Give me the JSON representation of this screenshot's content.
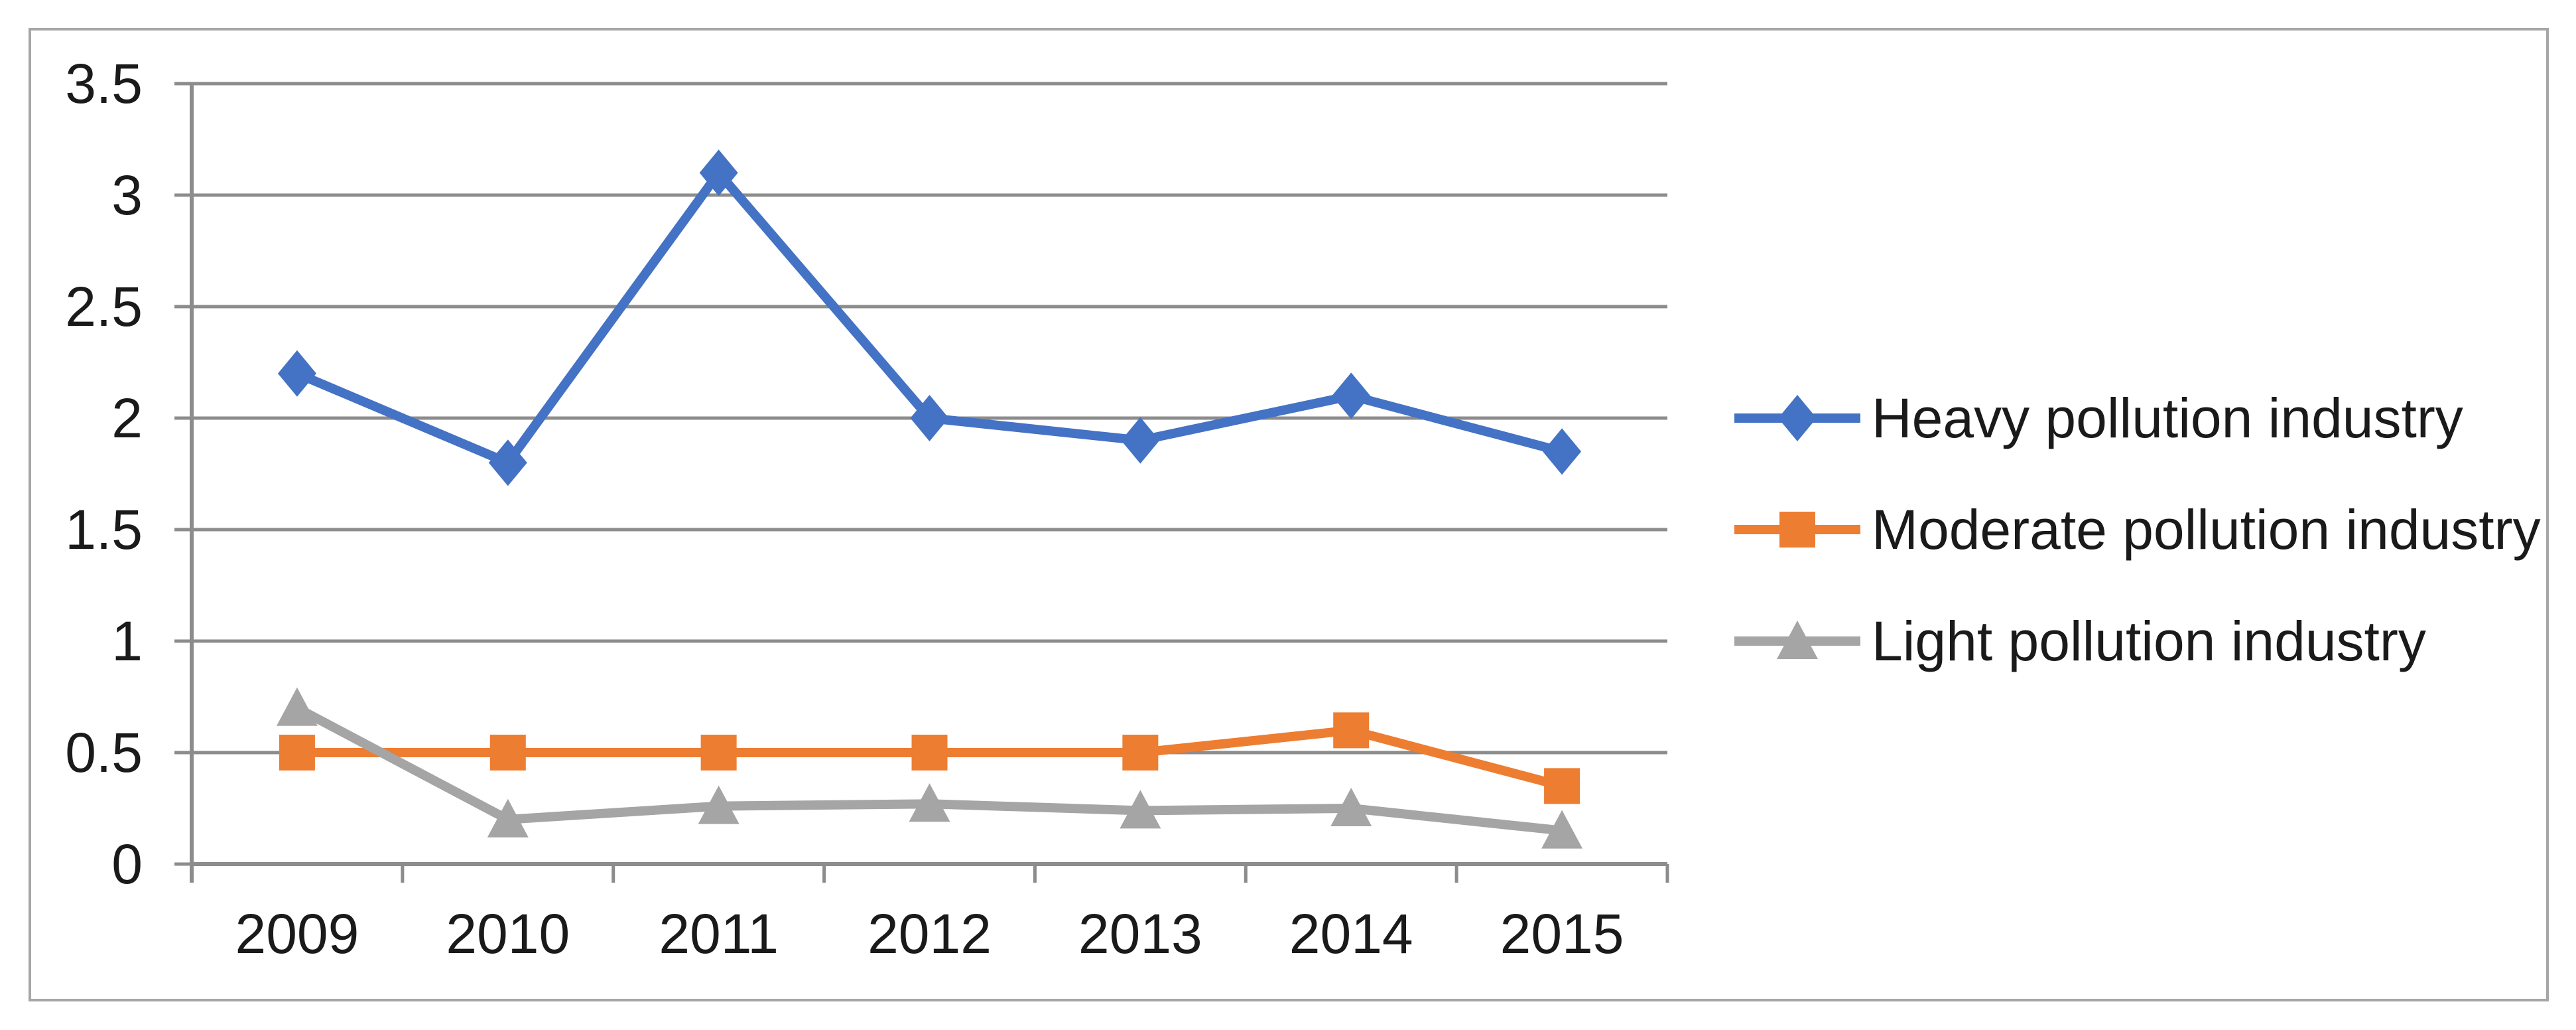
{
  "chart_data": {
    "type": "line",
    "categories": [
      "2009",
      "2010",
      "2011",
      "2012",
      "2013",
      "2014",
      "2015"
    ],
    "series": [
      {
        "name": "Heavy pollution industry",
        "color": "#4472C4",
        "marker": "diamond",
        "values": [
          2.2,
          1.8,
          3.1,
          2.0,
          1.9,
          2.1,
          1.85
        ]
      },
      {
        "name": "Moderate pollution industry",
        "color": "#ED7D31",
        "marker": "square",
        "values": [
          0.5,
          0.5,
          0.5,
          0.5,
          0.5,
          0.6,
          0.35
        ]
      },
      {
        "name": "Light pollution industry",
        "color": "#A5A5A5",
        "marker": "triangle",
        "values": [
          0.7,
          0.2,
          0.26,
          0.27,
          0.24,
          0.25,
          0.15
        ]
      }
    ],
    "xlabel": "",
    "ylabel": "",
    "ylim": [
      0,
      3.5
    ],
    "ytick_step": 0.5,
    "ytick_labels": [
      "0",
      "0.5",
      "1",
      "1.5",
      "2",
      "2.5",
      "3",
      "3.5"
    ],
    "grid": true,
    "legend_position": "right",
    "styles": {
      "background": "#FFFFFF",
      "border_color": "#A6A6A6",
      "gridline_color": "#8C8C8C",
      "axis_color": "#8C8C8C",
      "text_color": "#1A1A1A"
    }
  }
}
